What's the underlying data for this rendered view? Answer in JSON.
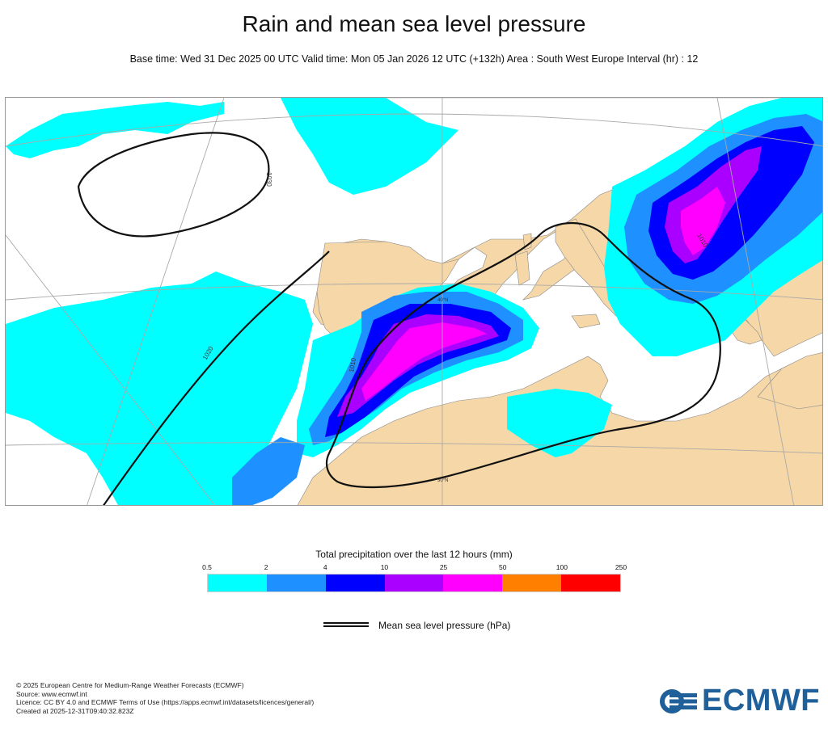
{
  "header": {
    "title": "Rain and mean sea level pressure",
    "subtitle": "Base time: Wed 31 Dec 2025 00 UTC Valid time: Mon 05 Jan 2026 12 UTC (+132h) Area : South West Europe Interval (hr) : 12"
  },
  "map": {
    "isobar_labels": [
      "1030",
      "1020",
      "1010",
      "1010"
    ],
    "graticule_labels": [
      "40°N",
      "30°N"
    ],
    "colors": {
      "land": "#f6d7a7",
      "sea": "#ffffff",
      "isobar": "#111111",
      "graticule": "#a9a9a9"
    }
  },
  "legend": {
    "title": "Total precipitation over the last 12 hours (mm)",
    "ticks": [
      "0.5",
      "2",
      "4",
      "10",
      "25",
      "50",
      "100",
      "250"
    ],
    "colors": [
      "#00ffff",
      "#1e90ff",
      "#0000ff",
      "#aa00ff",
      "#ff00ff",
      "#ff8000",
      "#ff0000"
    ],
    "mslp_label": "Mean sea level pressure (hPa)"
  },
  "credits": {
    "line1": "© 2025 European Centre for Medium-Range Weather Forecasts (ECMWF)",
    "line2": "Source: www.ecmwf.int",
    "line3": "Licence: CC BY 4.0 and ECMWF Terms of Use (https://apps.ecmwf.int/datasets/licences/general/)",
    "line4": "Created at 2025-12-31T09:40:32.823Z"
  },
  "logo": {
    "text": "ECMWF",
    "color": "#1f5f9a"
  }
}
